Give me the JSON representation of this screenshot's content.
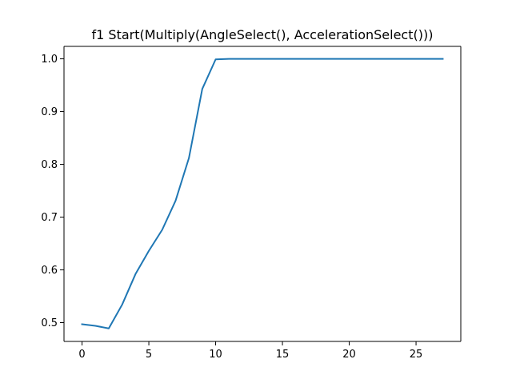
{
  "chart_data": {
    "type": "line",
    "title": "f1 Start(Multiply(AngleSelect(), AccelerationSelect()))",
    "xlabel": "",
    "ylabel": "",
    "xlim": [
      -1.35,
      28.35
    ],
    "ylim": [
      0.4644,
      1.0236
    ],
    "grid": false,
    "x_ticks": [
      0,
      5,
      10,
      15,
      20,
      25
    ],
    "y_ticks": [
      0.5,
      0.6,
      0.7,
      0.8,
      0.9,
      1.0
    ],
    "x_tick_labels": [
      "0",
      "5",
      "10",
      "15",
      "20",
      "25"
    ],
    "y_tick_labels": [
      "0.5",
      "0.6",
      "0.7",
      "0.8",
      "0.9",
      "1.0"
    ],
    "series": [
      {
        "color": "#1f77b4",
        "x": [
          0,
          1,
          2,
          3,
          4,
          5,
          6,
          7,
          8,
          9,
          10,
          11,
          12,
          13,
          14,
          15,
          16,
          17,
          18,
          19,
          20,
          21,
          22,
          23,
          24,
          25,
          26,
          27
        ],
        "y": [
          0.497,
          0.494,
          0.489,
          0.534,
          0.592,
          0.636,
          0.676,
          0.731,
          0.812,
          0.943,
          0.999,
          1.0,
          1.0,
          1.0,
          1.0,
          1.0,
          1.0,
          1.0,
          1.0,
          1.0,
          1.0,
          1.0,
          1.0,
          1.0,
          1.0,
          1.0,
          1.0,
          1.0
        ]
      }
    ]
  }
}
